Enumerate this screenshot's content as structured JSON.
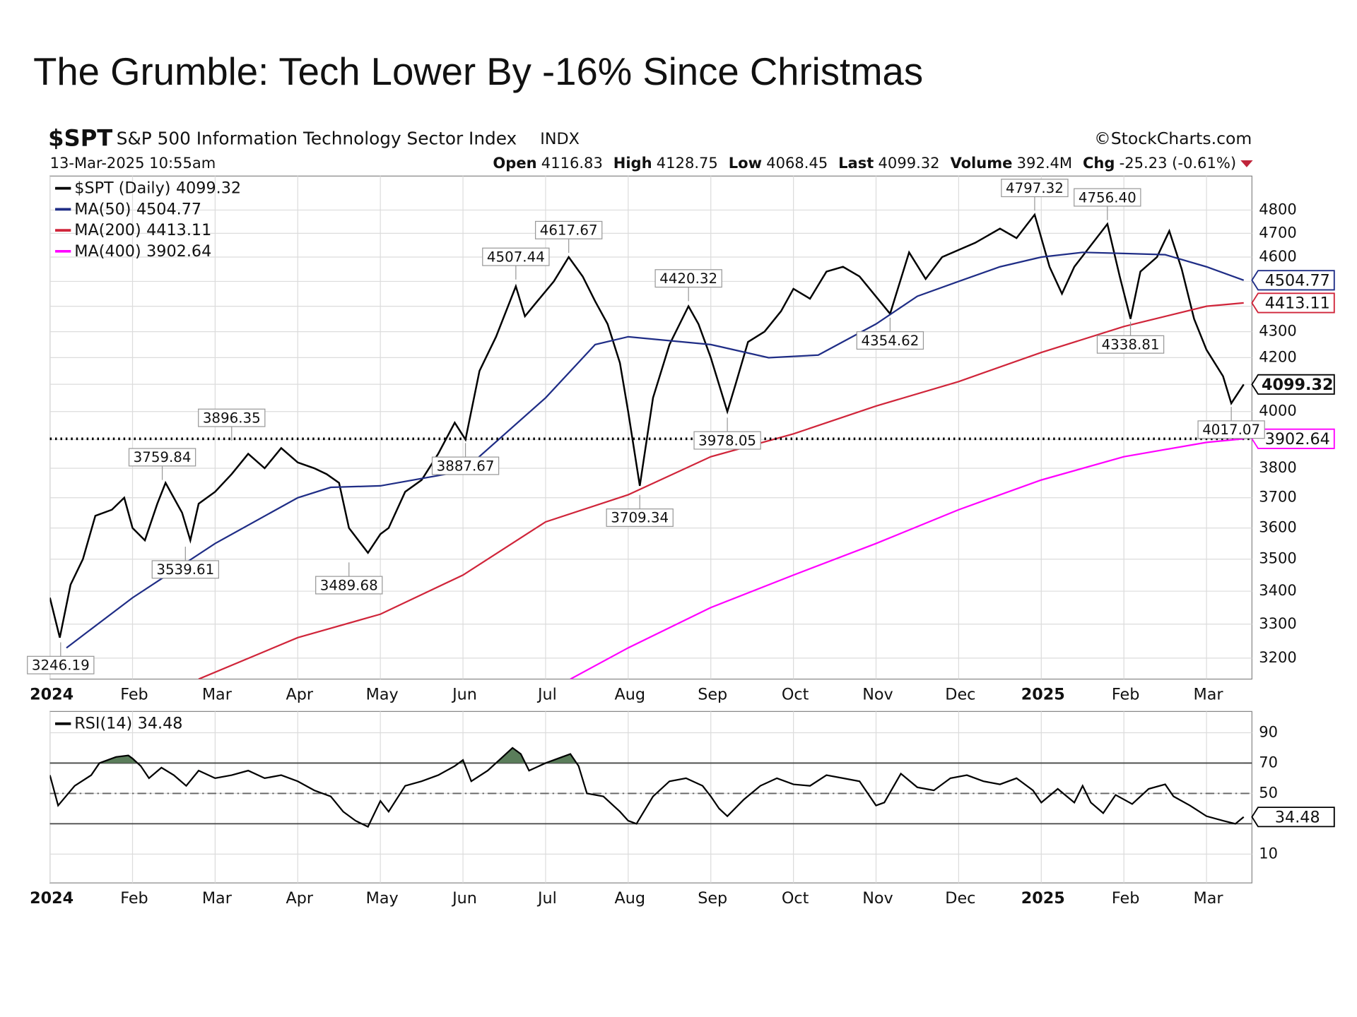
{
  "title": "The Grumble: Tech Lower By -16% Since Christmas",
  "header": {
    "symbol": "$SPT",
    "name": "S&P 500 Information Technology Sector Index",
    "exchange": "INDX",
    "source": "©StockCharts.com",
    "timestamp": "13-Mar-2025 10:55am",
    "quote": [
      {
        "label": "Open",
        "value": 4116.83
      },
      {
        "label": "High",
        "value": 4128.75
      },
      {
        "label": "Low",
        "value": 4068.45
      },
      {
        "label": "Last",
        "value": 4099.32
      },
      {
        "label": "Volume",
        "value": "392.4M"
      },
      {
        "label": "Chg",
        "value": "-25.23 (-0.61%)"
      }
    ]
  },
  "chart_data": [
    {
      "type": "line",
      "log_scale": true,
      "grid": true,
      "xlim": [
        0,
        14.55
      ],
      "ylim": [
        3140,
        4950
      ],
      "xticks": [
        {
          "value": 0,
          "label": "2024"
        },
        {
          "value": 1,
          "label": "Feb"
        },
        {
          "value": 2,
          "label": "Mar"
        },
        {
          "value": 3,
          "label": "Apr"
        },
        {
          "value": 4,
          "label": "May"
        },
        {
          "value": 5,
          "label": "Jun"
        },
        {
          "value": 6,
          "label": "Jul"
        },
        {
          "value": 7,
          "label": "Aug"
        },
        {
          "value": 8,
          "label": "Sep"
        },
        {
          "value": 9,
          "label": "Oct"
        },
        {
          "value": 10,
          "label": "Nov"
        },
        {
          "value": 11,
          "label": "Dec"
        },
        {
          "value": 12,
          "label": "2025"
        },
        {
          "value": 13,
          "label": "Feb"
        },
        {
          "value": 14,
          "label": "Mar"
        }
      ],
      "yticks": [
        3200,
        3300,
        3400,
        3500,
        3600,
        3700,
        3800,
        3900,
        4000,
        4100,
        4200,
        4300,
        4400,
        4500,
        4600,
        4700,
        4800
      ],
      "series": [
        {
          "name": "$SPT (Daily)",
          "color": "#000000",
          "last": 4099.32,
          "x": [
            0,
            0.12,
            0.25,
            0.4,
            0.55,
            0.75,
            0.9,
            1.0,
            1.15,
            1.3,
            1.4,
            1.6,
            1.7,
            1.8,
            2.0,
            2.2,
            2.4,
            2.6,
            2.8,
            3.0,
            3.2,
            3.35,
            3.5,
            3.62,
            3.85,
            4.0,
            4.1,
            4.3,
            4.5,
            4.7,
            4.9,
            5.03,
            5.2,
            5.4,
            5.64,
            5.75,
            5.9,
            6.1,
            6.28,
            6.45,
            6.6,
            6.75,
            6.9,
            7.0,
            7.14,
            7.3,
            7.5,
            7.73,
            7.85,
            8.0,
            8.2,
            8.3,
            8.45,
            8.65,
            8.85,
            9.0,
            9.2,
            9.4,
            9.6,
            9.8,
            10.17,
            10.4,
            10.6,
            10.8,
            11.0,
            11.2,
            11.5,
            11.7,
            11.92,
            12.1,
            12.25,
            12.4,
            12.8,
            12.95,
            13.08,
            13.2,
            13.4,
            13.55,
            13.7,
            13.85,
            14.0,
            14.2,
            14.3,
            14.45
          ],
          "values": [
            3380,
            3260,
            3420,
            3500,
            3640,
            3660,
            3700,
            3600,
            3560,
            3680,
            3750,
            3650,
            3560,
            3680,
            3720,
            3780,
            3850,
            3800,
            3870,
            3820,
            3800,
            3780,
            3750,
            3600,
            3520,
            3580,
            3600,
            3720,
            3760,
            3850,
            3960,
            3900,
            4150,
            4280,
            4480,
            4360,
            4420,
            4500,
            4600,
            4520,
            4420,
            4330,
            4180,
            4000,
            3740,
            4050,
            4250,
            4400,
            4330,
            4200,
            4000,
            4100,
            4260,
            4300,
            4380,
            4470,
            4430,
            4540,
            4560,
            4520,
            4370,
            4620,
            4510,
            4600,
            4630,
            4660,
            4720,
            4680,
            4780,
            4560,
            4450,
            4560,
            4740,
            4520,
            4350,
            4540,
            4600,
            4710,
            4550,
            4350,
            4230,
            4130,
            4030,
            4099.32
          ]
        },
        {
          "name": "MA(50)",
          "color": "#1f2d86",
          "last": 4504.77,
          "x": [
            0.2,
            1,
            2,
            3,
            3.4,
            4,
            5,
            6,
            6.6,
            7,
            7.5,
            8,
            8.7,
            9.3,
            10,
            10.5,
            11,
            11.5,
            12,
            12.5,
            13,
            13.5,
            14,
            14.45
          ],
          "values": [
            3230,
            3380,
            3550,
            3700,
            3735,
            3740,
            3790,
            4050,
            4250,
            4280,
            4265,
            4250,
            4200,
            4210,
            4330,
            4440,
            4500,
            4560,
            4600,
            4620,
            4615,
            4610,
            4560,
            4504.77
          ]
        },
        {
          "name": "MA(200)",
          "color": "#d0253a",
          "last": 4413.11,
          "x": [
            1.8,
            3,
            4,
            5,
            6,
            7,
            8,
            9,
            10,
            11,
            12,
            13,
            14,
            14.45
          ],
          "values": [
            3140,
            3260,
            3330,
            3450,
            3620,
            3710,
            3840,
            3920,
            4020,
            4110,
            4220,
            4320,
            4400,
            4413.11
          ]
        },
        {
          "name": "MA(400)",
          "color": "#ff00ff",
          "last": 3902.64,
          "ref_line": true,
          "x": [
            6.3,
            7,
            8,
            9,
            10,
            11,
            12,
            13,
            14,
            14.45
          ],
          "values": [
            3140,
            3230,
            3350,
            3450,
            3550,
            3660,
            3760,
            3840,
            3890,
            3902.64
          ]
        }
      ],
      "annotations": [
        {
          "x": 0.13,
          "value": 3246.19,
          "kind": "low"
        },
        {
          "x": 1.36,
          "value": 3759.84,
          "kind": "high"
        },
        {
          "x": 1.64,
          "value": 3539.61,
          "kind": "low"
        },
        {
          "x": 2.2,
          "value": 3896.35,
          "kind": "high"
        },
        {
          "x": 3.62,
          "value": 3489.68,
          "kind": "low"
        },
        {
          "x": 5.03,
          "value": 3887.67,
          "kind": "low"
        },
        {
          "x": 5.64,
          "value": 4507.44,
          "kind": "high"
        },
        {
          "x": 6.28,
          "value": 4617.67,
          "kind": "high"
        },
        {
          "x": 7.73,
          "value": 4420.32,
          "kind": "high"
        },
        {
          "x": 7.14,
          "value": 3709.34,
          "kind": "low"
        },
        {
          "x": 8.2,
          "value": 3978.05,
          "kind": "low"
        },
        {
          "x": 10.17,
          "value": 4354.62,
          "kind": "low"
        },
        {
          "x": 11.92,
          "value": 4797.32,
          "kind": "high"
        },
        {
          "x": 12.8,
          "value": 4756.4,
          "label": "4756.40",
          "kind": "high"
        },
        {
          "x": 13.08,
          "value": 4338.81,
          "kind": "low"
        },
        {
          "x": 14.3,
          "value": 4017.07,
          "kind": "low"
        }
      ]
    },
    {
      "type": "line",
      "grid": true,
      "xlim": [
        0,
        14.55
      ],
      "ylim": [
        -9,
        104
      ],
      "xticks": [
        {
          "value": 0,
          "label": "2024"
        },
        {
          "value": 1,
          "label": "Feb"
        },
        {
          "value": 2,
          "label": "Mar"
        },
        {
          "value": 3,
          "label": "Apr"
        },
        {
          "value": 4,
          "label": "May"
        },
        {
          "value": 5,
          "label": "Jun"
        },
        {
          "value": 6,
          "label": "Jul"
        },
        {
          "value": 7,
          "label": "Aug"
        },
        {
          "value": 8,
          "label": "Sep"
        },
        {
          "value": 9,
          "label": "Oct"
        },
        {
          "value": 10,
          "label": "Nov"
        },
        {
          "value": 11,
          "label": "Dec"
        },
        {
          "value": 12,
          "label": "2025"
        },
        {
          "value": 13,
          "label": "Feb"
        },
        {
          "value": 14,
          "label": "Mar"
        }
      ],
      "yticks": [
        10,
        50,
        70,
        90
      ],
      "levels": [
        30,
        50,
        70
      ],
      "fill_color": "#5a7d5a",
      "series": [
        {
          "name": "RSI(14)",
          "color": "#000000",
          "last": 34.48,
          "x": [
            0,
            0.1,
            0.3,
            0.5,
            0.6,
            0.8,
            0.95,
            1.0,
            1.1,
            1.2,
            1.35,
            1.5,
            1.65,
            1.8,
            2.0,
            2.2,
            2.4,
            2.6,
            2.8,
            3.0,
            3.2,
            3.4,
            3.55,
            3.7,
            3.85,
            4.0,
            4.1,
            4.3,
            4.5,
            4.7,
            4.9,
            5.0,
            5.1,
            5.3,
            5.5,
            5.6,
            5.7,
            5.8,
            6.0,
            6.2,
            6.3,
            6.4,
            6.5,
            6.7,
            6.9,
            7.0,
            7.1,
            7.3,
            7.5,
            7.7,
            7.9,
            8.0,
            8.1,
            8.2,
            8.4,
            8.6,
            8.8,
            9.0,
            9.2,
            9.4,
            9.6,
            9.8,
            10.0,
            10.1,
            10.3,
            10.5,
            10.7,
            10.9,
            11.1,
            11.3,
            11.5,
            11.7,
            11.9,
            12.0,
            12.2,
            12.4,
            12.5,
            12.6,
            12.75,
            12.9,
            13.1,
            13.3,
            13.5,
            13.6,
            13.8,
            14.0,
            14.2,
            14.35,
            14.45
          ],
          "values": [
            62,
            42,
            55,
            62,
            70,
            74,
            75,
            73,
            68,
            60,
            67,
            62,
            55,
            65,
            60,
            62,
            65,
            60,
            62,
            58,
            52,
            48,
            38,
            32,
            28,
            45,
            38,
            55,
            58,
            62,
            68,
            72,
            58,
            65,
            75,
            80,
            76,
            65,
            70,
            74,
            76,
            68,
            50,
            48,
            38,
            32,
            30,
            48,
            58,
            60,
            55,
            48,
            40,
            35,
            46,
            55,
            60,
            56,
            55,
            62,
            60,
            58,
            42,
            44,
            63,
            54,
            52,
            60,
            62,
            58,
            56,
            60,
            52,
            44,
            53,
            44,
            55,
            44,
            37,
            49,
            43,
            53,
            56,
            48,
            42,
            35,
            32,
            30,
            34.48
          ]
        }
      ]
    }
  ]
}
